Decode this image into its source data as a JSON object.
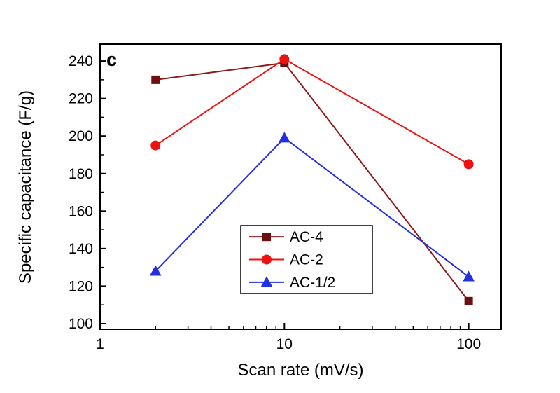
{
  "page": {
    "background": "#ffffff",
    "axis_color": "#000000"
  },
  "chart_data": {
    "type": "line",
    "panel_label": "c",
    "title": "",
    "xlabel": "Scan rate (mV/s)",
    "ylabel": "Specific capacitance (F/g)",
    "x_scale": "log",
    "xlim": [
      1,
      150
    ],
    "ylim": [
      97,
      249
    ],
    "x_major_ticks": [
      1,
      10,
      100
    ],
    "x_tick_labels": [
      "1",
      "10",
      "100"
    ],
    "y_major_ticks": [
      100,
      120,
      140,
      160,
      180,
      200,
      220,
      240
    ],
    "y_minor_ticks": [
      110,
      130,
      150,
      170,
      190,
      210,
      230
    ],
    "grid": false,
    "legend_position": "inside-bottom-center",
    "x": [
      2,
      10,
      100
    ],
    "series": [
      {
        "name": "AC-4",
        "marker": "square",
        "color": "#8B1A1A",
        "marker_color": "#6E0F0F",
        "values": [
          230,
          239,
          112
        ]
      },
      {
        "name": "AC-2",
        "marker": "circle",
        "color": "#EE1111",
        "marker_color": "#EE1111",
        "values": [
          195,
          241,
          185
        ]
      },
      {
        "name": "AC-1/2",
        "marker": "triangle",
        "color": "#2330E0",
        "marker_color": "#2330E0",
        "values": [
          128,
          199,
          125
        ]
      }
    ]
  }
}
